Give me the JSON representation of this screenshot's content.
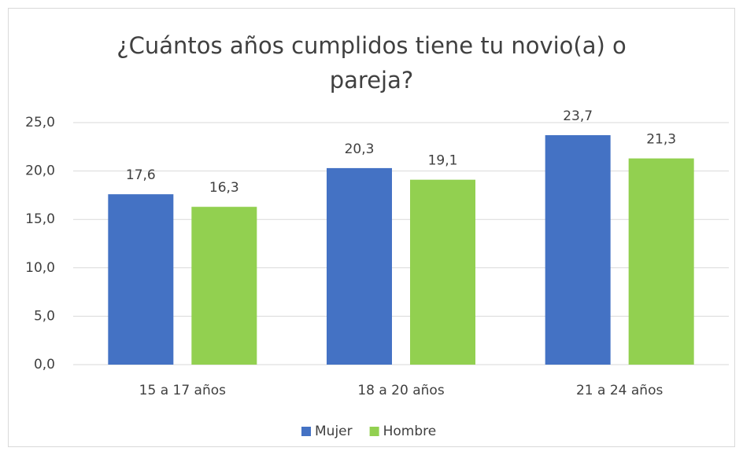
{
  "chart_data": {
    "type": "bar",
    "title": "¿Cuántos años cumplidos tiene tu novio(a) o pareja?",
    "categories": [
      "15 a 17 años",
      "18 a 20 años",
      "21 a 24 años"
    ],
    "series": [
      {
        "name": "Mujer",
        "color": "#4472c4",
        "values": [
          17.6,
          20.3,
          23.7
        ],
        "value_labels": [
          "17,6",
          "20,3",
          "23,7"
        ]
      },
      {
        "name": "Hombre",
        "color": "#92d050",
        "values": [
          16.3,
          19.1,
          21.3
        ],
        "value_labels": [
          "16,3",
          "19,1",
          "21,3"
        ]
      }
    ],
    "ylim": [
      0,
      25
    ],
    "yticks": [
      {
        "value": 0,
        "label": "0,0"
      },
      {
        "value": 5,
        "label": "5,0"
      },
      {
        "value": 10,
        "label": "10,0"
      },
      {
        "value": 15,
        "label": "15,0"
      },
      {
        "value": 20,
        "label": "20,0"
      },
      {
        "value": 25,
        "label": "25,0"
      }
    ],
    "grid": true,
    "legend": "bottom"
  }
}
